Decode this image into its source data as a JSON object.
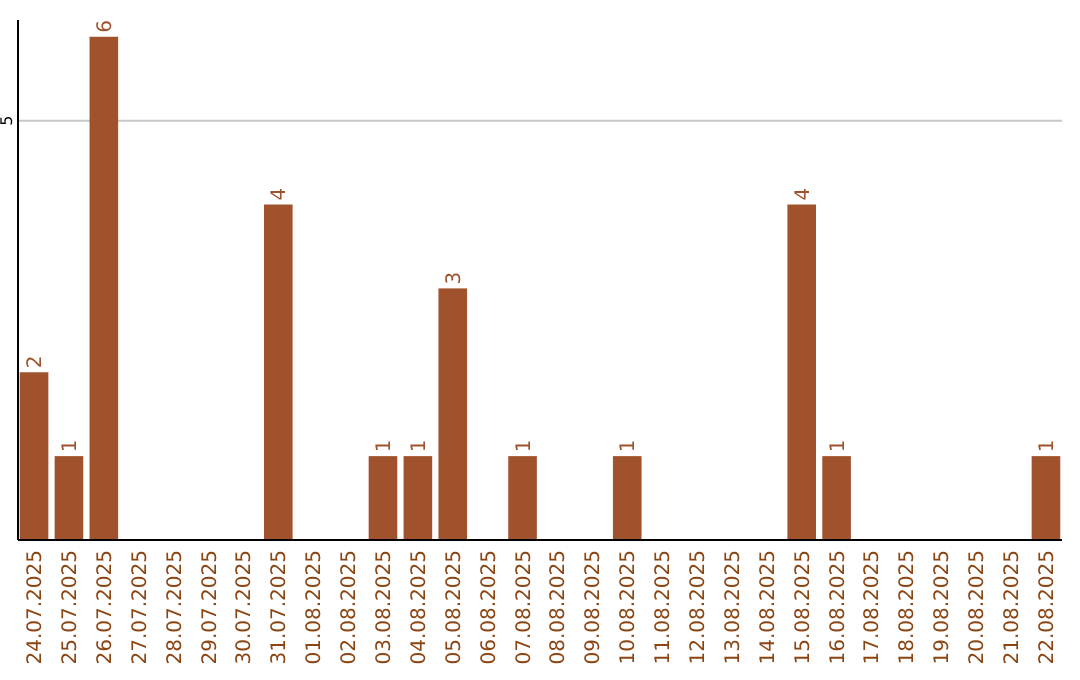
{
  "chart_data": {
    "type": "bar",
    "categories": [
      "24.07.2025",
      "25.07.2025",
      "26.07.2025",
      "27.07.2025",
      "28.07.2025",
      "29.07.2025",
      "30.07.2025",
      "31.07.2025",
      "01.08.2025",
      "02.08.2025",
      "03.08.2025",
      "04.08.2025",
      "05.08.2025",
      "06.08.2025",
      "07.08.2025",
      "08.08.2025",
      "09.08.2025",
      "10.08.2025",
      "11.08.2025",
      "12.08.2025",
      "13.08.2025",
      "14.08.2025",
      "15.08.2025",
      "16.08.2025",
      "17.08.2025",
      "18.08.2025",
      "19.08.2025",
      "20.08.2025",
      "21.08.2025",
      "22.08.2025"
    ],
    "values": [
      2,
      1,
      6,
      0,
      0,
      0,
      0,
      4,
      0,
      0,
      1,
      1,
      3,
      0,
      1,
      0,
      0,
      1,
      0,
      0,
      0,
      0,
      4,
      1,
      0,
      0,
      0,
      0,
      0,
      1
    ],
    "value_labels": [
      "2",
      "1",
      "6",
      null,
      null,
      null,
      null,
      "4",
      null,
      null,
      "1",
      "1",
      "3",
      null,
      "1",
      null,
      null,
      "1",
      null,
      null,
      null,
      null,
      "4",
      "1",
      null,
      null,
      null,
      null,
      null,
      "1"
    ],
    "color": "#a0522d",
    "ylim": [
      0,
      6.2
    ],
    "yticks": [
      5
    ],
    "grid": "y"
  }
}
